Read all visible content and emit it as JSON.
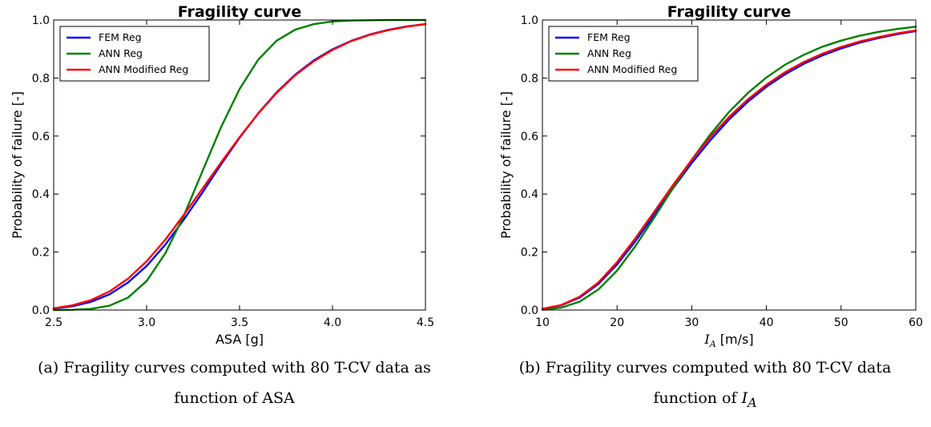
{
  "chart_data": [
    {
      "type": "line",
      "title": "Fragility curve",
      "xlabel": "ASA [g]",
      "ylabel": "Probability of failure [-]",
      "xlim": [
        2.5,
        4.5
      ],
      "ylim": [
        0.0,
        1.0
      ],
      "xticks": [
        "2.5",
        "3.0",
        "3.5",
        "4.0",
        "4.5"
      ],
      "yticks": [
        "0.0",
        "0.2",
        "0.4",
        "0.6",
        "0.8",
        "1.0"
      ],
      "legend_position": "top-left",
      "x": [
        2.5,
        2.6,
        2.7,
        2.8,
        2.9,
        3.0,
        3.1,
        3.2,
        3.3,
        3.4,
        3.5,
        3.6,
        3.7,
        3.8,
        3.9,
        4.0,
        4.1,
        4.2,
        4.3,
        4.4,
        4.5
      ],
      "series": [
        {
          "name": "FEM Reg",
          "color": "#0000ff",
          "values": [
            0.005,
            0.013,
            0.028,
            0.054,
            0.095,
            0.152,
            0.225,
            0.312,
            0.405,
            0.502,
            0.594,
            0.678,
            0.751,
            0.812,
            0.861,
            0.899,
            0.928,
            0.95,
            0.966,
            0.978,
            0.986
          ]
        },
        {
          "name": "ANN Reg",
          "color": "#008000",
          "values": [
            0.0,
            0.001,
            0.004,
            0.015,
            0.043,
            0.1,
            0.195,
            0.325,
            0.478,
            0.63,
            0.762,
            0.863,
            0.929,
            0.967,
            0.986,
            0.995,
            0.998,
            0.999,
            1.0,
            1.0,
            1.0
          ]
        },
        {
          "name": "ANN Modified Reg",
          "color": "#ff0000",
          "values": [
            0.006,
            0.016,
            0.034,
            0.064,
            0.108,
            0.168,
            0.242,
            0.328,
            0.418,
            0.508,
            0.596,
            0.677,
            0.749,
            0.81,
            0.858,
            0.897,
            0.927,
            0.949,
            0.965,
            0.977,
            0.986
          ]
        }
      ]
    },
    {
      "type": "line",
      "title": "Fragility curve",
      "xlabel_symbol": "I",
      "xlabel_subscript": "A",
      "xlabel_unit": " [m/s]",
      "ylabel": "Probability of failure [-]",
      "xlim": [
        10,
        60
      ],
      "ylim": [
        0.0,
        1.0
      ],
      "xticks": [
        "10",
        "20",
        "30",
        "40",
        "50",
        "60"
      ],
      "yticks": [
        "0.0",
        "0.2",
        "0.4",
        "0.6",
        "0.8",
        "1.0"
      ],
      "legend_position": "top-left",
      "x": [
        10,
        12.5,
        15,
        17.5,
        20,
        22.5,
        25,
        27.5,
        30,
        32.5,
        35,
        37.5,
        40,
        42.5,
        45,
        47.5,
        50,
        52.5,
        55,
        57.5,
        60
      ],
      "series": [
        {
          "name": "FEM Reg",
          "color": "#0000ff",
          "values": [
            0.004,
            0.016,
            0.043,
            0.09,
            0.157,
            0.239,
            0.329,
            0.42,
            0.507,
            0.586,
            0.657,
            0.718,
            0.77,
            0.813,
            0.849,
            0.878,
            0.902,
            0.922,
            0.938,
            0.951,
            0.962
          ]
        },
        {
          "name": "ANN Reg",
          "color": "#008000",
          "values": [
            0.001,
            0.008,
            0.029,
            0.071,
            0.136,
            0.222,
            0.32,
            0.421,
            0.518,
            0.606,
            0.683,
            0.748,
            0.802,
            0.846,
            0.88,
            0.908,
            0.929,
            0.946,
            0.959,
            0.969,
            0.977
          ]
        },
        {
          "name": "ANN Modified Reg",
          "color": "#ff0000",
          "values": [
            0.004,
            0.017,
            0.046,
            0.095,
            0.165,
            0.249,
            0.34,
            0.431,
            0.518,
            0.597,
            0.666,
            0.726,
            0.777,
            0.82,
            0.855,
            0.884,
            0.907,
            0.926,
            0.941,
            0.954,
            0.964
          ]
        }
      ]
    }
  ],
  "captions": {
    "a_line1": "(a) Fragility curves computed with 80 T-CV data as",
    "a_line2": "function of ASA",
    "b_line1": "(b) Fragility curves computed with 80 T-CV data",
    "b_line2_prefix": "function of ",
    "b_line2_symbol": "I",
    "b_line2_subscript": "A"
  }
}
